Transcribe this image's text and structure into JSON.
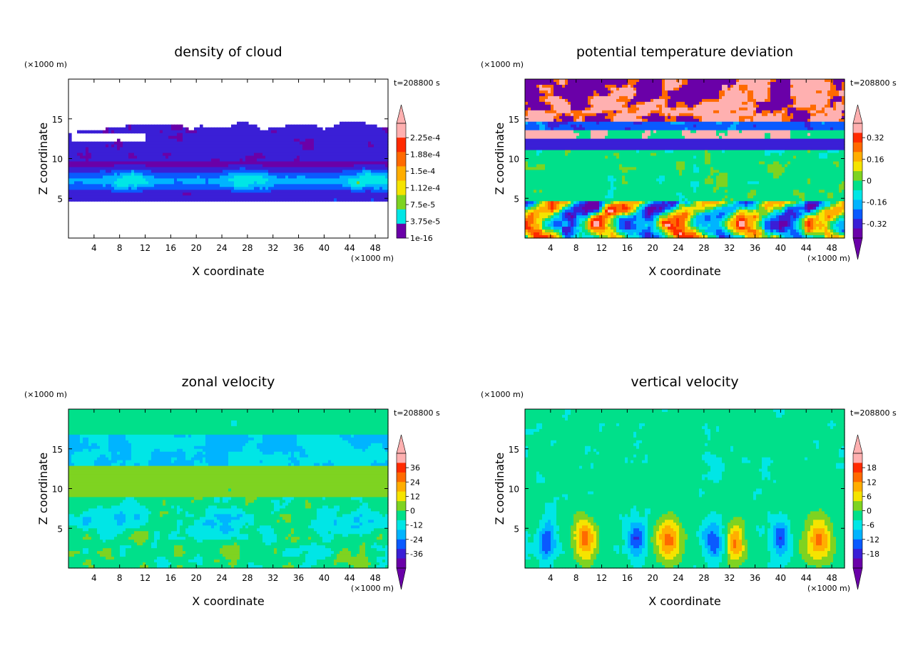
{
  "colors": {
    "palette": [
      "#6a00a8",
      "#3a1fd6",
      "#0a5aff",
      "#00b4ff",
      "#00e6e6",
      "#00e08a",
      "#7ed321",
      "#f5e400",
      "#ffae00",
      "#ff6a00",
      "#ff2a00",
      "#ffb0b0"
    ],
    "background": "#ffffff"
  },
  "chart_data": [
    {
      "type": "heatmap",
      "id": "cloud",
      "title": "density of cloud",
      "xlabel": "X coordinate",
      "ylabel": "Z coordinate",
      "x_unit": "(×1000 m)",
      "y_unit": "(×1000 m)",
      "time_label": "t=208800 s",
      "xlim": [
        0,
        50
      ],
      "ylim": [
        0,
        20
      ],
      "x_ticks": [
        4,
        8,
        12,
        16,
        20,
        24,
        28,
        32,
        36,
        40,
        44,
        48
      ],
      "y_ticks": [
        5,
        10,
        15
      ],
      "colorbar": {
        "labels": [
          "2.25e-4",
          "1.88e-4",
          "1.5e-4",
          "1.12e-4",
          "7.5e-5",
          "3.75e-5",
          "1e-16"
        ],
        "min_arrow": false,
        "max_arrow": true
      }
    },
    {
      "type": "heatmap",
      "id": "theta",
      "title": "potential temperature deviation",
      "xlabel": "X coordinate",
      "ylabel": "Z coordinate",
      "x_unit": "(×1000 m)",
      "y_unit": "(×1000 m)",
      "time_label": "t=208800 s",
      "xlim": [
        0,
        50
      ],
      "ylim": [
        0,
        20
      ],
      "x_ticks": [
        4,
        8,
        12,
        16,
        20,
        24,
        28,
        32,
        36,
        40,
        44,
        48
      ],
      "y_ticks": [
        5,
        10,
        15
      ],
      "colorbar": {
        "labels": [
          "0.32",
          "0.16",
          "0",
          "-0.16",
          "-0.32"
        ],
        "min_arrow": true,
        "max_arrow": true
      }
    },
    {
      "type": "heatmap",
      "id": "zonal",
      "title": "zonal velocity",
      "xlabel": "X coordinate",
      "ylabel": "Z coordinate",
      "x_unit": "(×1000 m)",
      "y_unit": "(×1000 m)",
      "time_label": "t=208800 s",
      "xlim": [
        0,
        50
      ],
      "ylim": [
        0,
        20
      ],
      "x_ticks": [
        4,
        8,
        12,
        16,
        20,
        24,
        28,
        32,
        36,
        40,
        44,
        48
      ],
      "y_ticks": [
        5,
        10,
        15
      ],
      "colorbar": {
        "labels": [
          "36",
          "24",
          "12",
          "0",
          "-12",
          "-24",
          "-36"
        ],
        "min_arrow": true,
        "max_arrow": true
      }
    },
    {
      "type": "heatmap",
      "id": "vertical",
      "title": "vertical velocity",
      "xlabel": "X coordinate",
      "ylabel": "Z coordinate",
      "x_unit": "(×1000 m)",
      "y_unit": "(×1000 m)",
      "time_label": "t=208800 s",
      "xlim": [
        0,
        50
      ],
      "ylim": [
        0,
        20
      ],
      "x_ticks": [
        4,
        8,
        12,
        16,
        20,
        24,
        28,
        32,
        36,
        40,
        44,
        48
      ],
      "y_ticks": [
        5,
        10,
        15
      ],
      "colorbar": {
        "labels": [
          "18",
          "12",
          "6",
          "0",
          "-6",
          "-12",
          "-18"
        ],
        "min_arrow": true,
        "max_arrow": true
      }
    }
  ]
}
